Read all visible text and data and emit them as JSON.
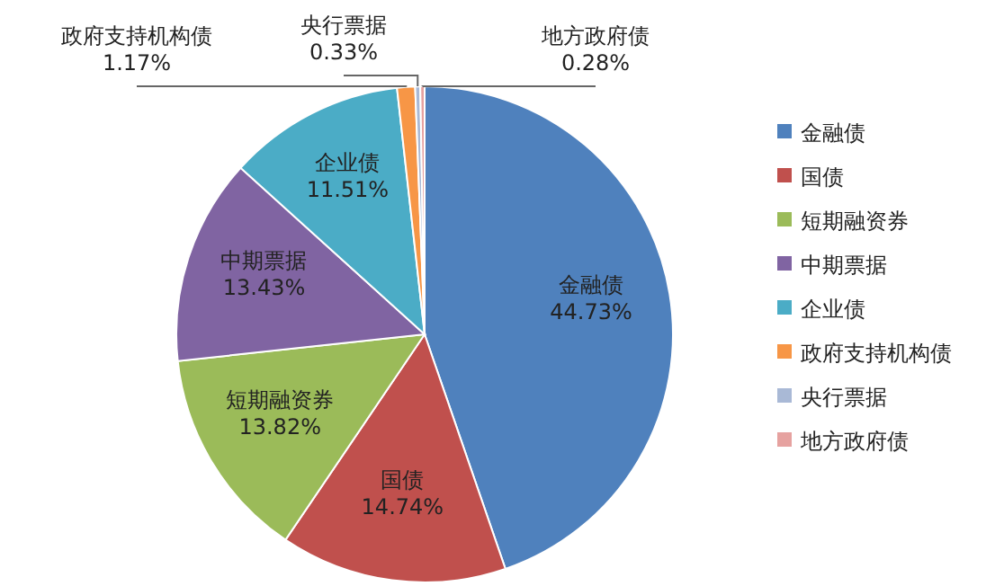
{
  "chart_data": {
    "type": "pie",
    "categories": [
      "金融债",
      "国债",
      "短期融资券",
      "中期票据",
      "企业债",
      "政府支持机构债",
      "央行票据",
      "地方政府债"
    ],
    "values": [
      44.73,
      14.74,
      13.82,
      13.43,
      11.51,
      1.17,
      0.33,
      0.28
    ],
    "colors": [
      "#4f81bd",
      "#c0504d",
      "#9bbb59",
      "#8064a2",
      "#4bacc6",
      "#f79646",
      "#a9b9d6",
      "#e6a2a0"
    ],
    "value_labels": [
      "44.73%",
      "14.74%",
      "13.82%",
      "13.43%",
      "11.51%",
      "1.17%",
      "0.33%",
      "0.28%"
    ],
    "legend": "right"
  }
}
